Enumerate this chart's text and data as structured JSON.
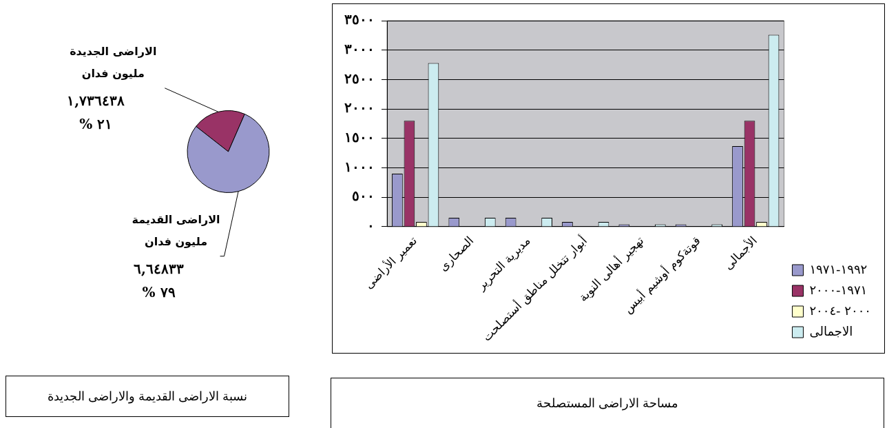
{
  "chart_data": [
    {
      "type": "pie",
      "title": "نسبة الاراضى القديمة والاراضى الجديدة",
      "categories": [
        "الاراضى الجديدة\nمليون فدان",
        "الاراضى القديمة\nمليون فدان"
      ],
      "values": [
        21,
        79
      ],
      "colors": [
        "#993366",
        "#9999cc"
      ],
      "value_labels": [
        "١,٧٣٦٤٣٨\n% ٢١",
        "٦,٦٤٨٣٣\n% ٧٩"
      ],
      "legend": false
    },
    {
      "type": "bar",
      "title": "مساحة الاراضى المستصلحة",
      "categories": [
        "تعمير الأراضى",
        "الصحارى",
        "مديرية التحرير",
        "أبوار تتخلل مناطق أستصلحت",
        "تهجير أهالى النوبة",
        "قوتةكوم أوشيم أبيس",
        "الأجمالى"
      ],
      "series": [
        {
          "name": "١٩٩٢-١٩٧١",
          "color": "#9999cc",
          "values": [
            900,
            150,
            150,
            80,
            40,
            40,
            1370
          ]
        },
        {
          "name": "١٩٧١-٢٠٠٠",
          "color": "#993366",
          "values": [
            1800,
            null,
            null,
            null,
            null,
            null,
            1800
          ]
        },
        {
          "name": "٢٠٠٠ -٢٠٠٤",
          "color": "#ffffcc",
          "values": [
            80,
            null,
            null,
            null,
            null,
            null,
            80
          ]
        },
        {
          "name": "الاجمالى",
          "color": "#ccecf0",
          "values": [
            2780,
            150,
            150,
            80,
            40,
            40,
            3260
          ]
        }
      ],
      "ylim": [
        0,
        3500
      ],
      "yticks": [
        {
          "value": 0,
          "label": "٠"
        },
        {
          "value": 500,
          "label": "٥٠٠"
        },
        {
          "value": 1000,
          "label": "١٠٠٠"
        },
        {
          "value": 1500,
          "label": "١٥٠٠"
        },
        {
          "value": 2000,
          "label": "٢٠٠٠"
        },
        {
          "value": 2500,
          "label": "٢٥٠٠"
        },
        {
          "value": 3000,
          "label": "٣٠٠٠"
        },
        {
          "value": 3500,
          "label": "٣٥٠٠"
        }
      ],
      "grid": "y",
      "legend": "bottom right"
    }
  ]
}
